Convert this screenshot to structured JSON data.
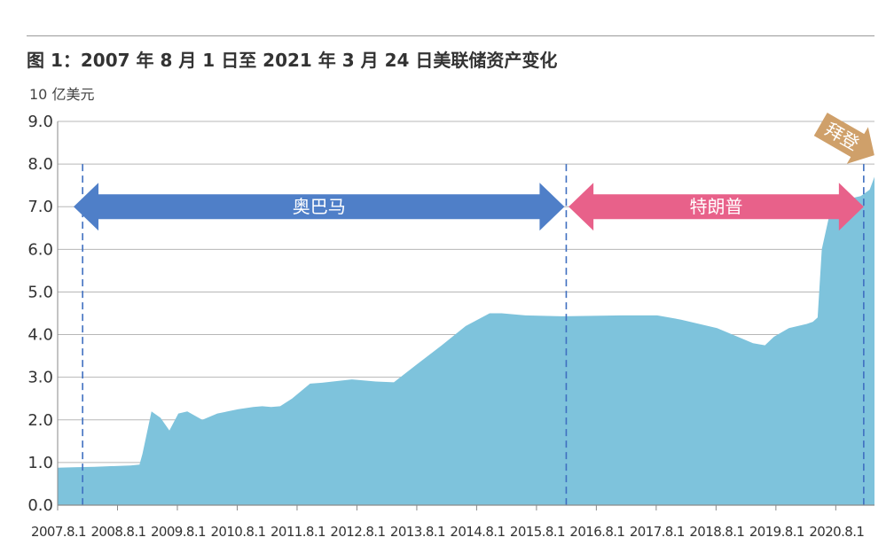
{
  "chart_data": {
    "type": "area",
    "title": "图 1：2007 年 8 月 1 日至 2021 年 3 月 24 日美联储资产变化",
    "ylabel": "10 亿美元",
    "ylim": [
      0,
      9
    ],
    "yticks": [
      "0.0",
      "1.0",
      "2.0",
      "3.0",
      "4.0",
      "5.0",
      "6.0",
      "7.0",
      "8.0",
      "9.0"
    ],
    "xlim": [
      2007.583,
      2021.23
    ],
    "xticks": [
      {
        "label": "2007.8.1",
        "x": 2007.583
      },
      {
        "label": "2008.8.1",
        "x": 2008.583
      },
      {
        "label": "2009.8.1",
        "x": 2009.583
      },
      {
        "label": "2010.8.1",
        "x": 2010.583
      },
      {
        "label": "2011.8.1",
        "x": 2011.583
      },
      {
        "label": "2012.8.1",
        "x": 2012.583
      },
      {
        "label": "2013.8.1",
        "x": 2013.583
      },
      {
        "label": "2014.8.1",
        "x": 2014.583
      },
      {
        "label": "2015.8.1",
        "x": 2015.583
      },
      {
        "label": "2016.8.1",
        "x": 2016.583
      },
      {
        "label": "2017.8.1",
        "x": 2017.583
      },
      {
        "label": "2018.8.1",
        "x": 2018.583
      },
      {
        "label": "2019.8.1",
        "x": 2019.583
      },
      {
        "label": "2020.8.1",
        "x": 2020.583
      }
    ],
    "grid": true,
    "fill_color": "#7ec3dc",
    "series": [
      {
        "x": [
          2007.583,
          2007.85,
          2008.2,
          2008.6,
          2008.8,
          2008.95,
          2009.0,
          2009.15,
          2009.3,
          2009.45,
          2009.6,
          2009.75,
          2010.0,
          2010.25,
          2010.6,
          2010.85,
          2011.0,
          2011.15,
          2011.3,
          2011.5,
          2011.8,
          2012.0,
          2012.5,
          2012.9,
          2013.2,
          2013.583,
          2014.0,
          2014.4,
          2014.8,
          2015.0,
          2015.4,
          2016.0,
          2017.0,
          2017.6,
          2018.0,
          2018.6,
          2019.2,
          2019.4,
          2019.55,
          2019.8,
          2020.1,
          2020.2,
          2020.28,
          2020.35,
          2020.5,
          2020.65,
          2020.85,
          2021.0,
          2021.15,
          2021.23
        ],
        "y": [
          0.88,
          0.89,
          0.9,
          0.92,
          0.93,
          0.95,
          1.2,
          2.2,
          2.05,
          1.75,
          2.15,
          2.2,
          2.0,
          2.15,
          2.25,
          2.3,
          2.32,
          2.3,
          2.32,
          2.5,
          2.85,
          2.87,
          2.95,
          2.9,
          2.88,
          3.3,
          3.75,
          4.2,
          4.5,
          4.5,
          4.45,
          4.43,
          4.45,
          4.45,
          4.35,
          4.15,
          3.8,
          3.75,
          3.95,
          4.15,
          4.25,
          4.3,
          4.4,
          6.0,
          6.95,
          7.1,
          7.2,
          7.25,
          7.4,
          7.7
        ]
      }
    ],
    "annotations": [
      {
        "label": "奥巴马",
        "from": 2007.85,
        "to": 2016.05,
        "y": 7.0,
        "color": "#4f7fc8"
      },
      {
        "label": "特朗普",
        "from": 2016.12,
        "to": 2021.05,
        "y": 7.0,
        "color": "#e8618a"
      },
      {
        "label": "拜登",
        "at": 2021.05,
        "color": "#cfa06a"
      }
    ],
    "marker_lines": [
      2008.0,
      2016.08,
      2021.05
    ]
  }
}
